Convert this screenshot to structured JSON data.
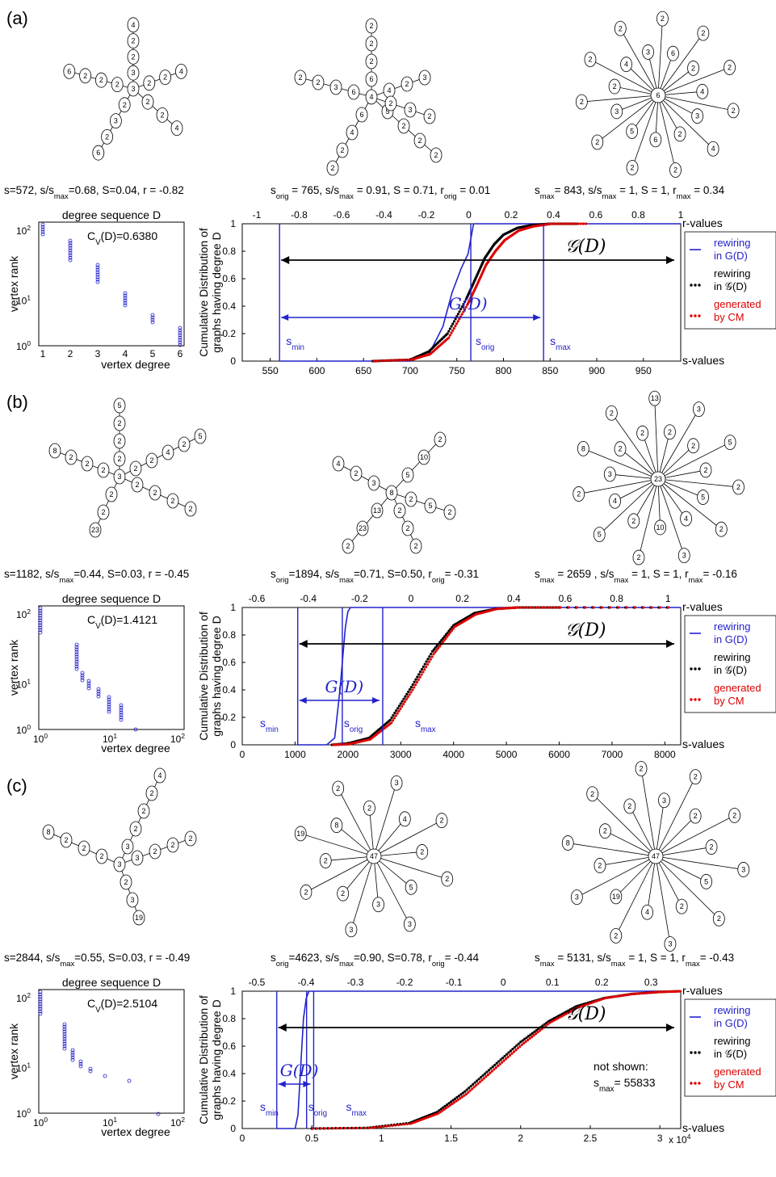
{
  "figure": {
    "panels": [
      {
        "label": "(a)",
        "captions": [
          {
            "base": "s=572, s/s",
            "sub": "max",
            "rest": "=0.68, S=0.04, r = -0.82"
          },
          {
            "base": "s",
            "sub": "orig",
            "rest": " = 765, s/s",
            "sub2": "max",
            "rest2": " = 0.91, S = 0.71, r",
            "sub3": "orig",
            "rest3": " = 0.01"
          },
          {
            "base": "s",
            "sub": "max",
            "rest": "= 843, s/s",
            "sub2": "max",
            "rest2": " = 1, S = 1, r",
            "sub3": "max",
            "rest3": " = 0.34"
          }
        ],
        "degree_plot": {
          "title": "degree sequence D",
          "cv": "C",
          "cv_sub": "V",
          "cv_rest": "(D)=0.6380",
          "ylabel": "vertex rank",
          "xlabel": "vertex degree",
          "x_ticks": [
            "1",
            "2",
            "3",
            "4",
            "5",
            "6"
          ],
          "y_ticks": [
            "10",
            "10",
            "10"
          ],
          "y_exp": [
            "0",
            "1",
            "2"
          ]
        },
        "cdf_plot": {
          "ylabel1": "Cumulative Distribution of",
          "ylabel2": "graphs having degree D",
          "x_ticks": [
            "550",
            "600",
            "650",
            "700",
            "750",
            "800",
            "850",
            "900",
            "950"
          ],
          "top_ticks": [
            "-1",
            "-0.8",
            "-0.6",
            "-0.4",
            "-0.2",
            "0",
            "0.2",
            "0.4",
            "0.6",
            "0.8",
            "1"
          ],
          "y_ticks": [
            "0",
            "0.2",
            "0.4",
            "0.6",
            "0.8",
            "1"
          ],
          "x_label": "s-values",
          "top_label": "r-values",
          "markers": {
            "s_min": "s",
            "s_min_sub": "min",
            "s_orig": "s",
            "s_orig_sub": "orig",
            "s_max": "s",
            "s_max_sub": "max"
          },
          "big_G": "G(D)",
          "script_G": "𝒢(D)",
          "legend": [
            {
              "line1": "rewiring",
              "line2": "in G(D)",
              "color": "#2222cc"
            },
            {
              "line1": "rewiring",
              "line2": "in 𝒢(D)",
              "color": "#000000"
            },
            {
              "line1": "generated",
              "line2": "by CM",
              "color": "#dd0000"
            }
          ]
        }
      },
      {
        "label": "(b)",
        "captions": [
          {
            "base": "s=1182, s/s",
            "sub": "max",
            "rest": "=0.44, S=0.03, r = -0.45"
          },
          {
            "base": "s",
            "sub": "orig",
            "rest": "=1894, s/s",
            "sub2": "max",
            "rest2": "=0.71, S=0.50, r",
            "sub3": "orig",
            "rest3": "= -0.31"
          },
          {
            "base": "s",
            "sub": "max",
            "rest": " = 2659 , s/s",
            "sub2": "max",
            "rest2": " = 1, S = 1, r",
            "sub3": "max",
            "rest3": "= -0.16"
          }
        ],
        "degree_plot": {
          "title": "degree sequence D",
          "cv": "C",
          "cv_sub": "V",
          "cv_rest": "(D)=1.4121",
          "ylabel": "vertex rank",
          "xlabel": "vertex degree",
          "x_ticks": [
            "10",
            "10",
            "10"
          ],
          "x_exp": [
            "0",
            "1",
            "2"
          ],
          "y_ticks": [
            "10",
            "10",
            "10"
          ],
          "y_exp": [
            "0",
            "1",
            "2"
          ]
        },
        "cdf_plot": {
          "ylabel1": "Cumulative Distribution of",
          "ylabel2": "graphs having degree D",
          "x_ticks": [
            "0",
            "1000",
            "2000",
            "3000",
            "4000",
            "5000",
            "6000",
            "7000",
            "8000"
          ],
          "top_ticks": [
            "-0.6",
            "-0.4",
            "-0.2",
            "0",
            "0.2",
            "0.4",
            "0.6",
            "0.8",
            "1"
          ],
          "y_ticks": [
            "0",
            "0.2",
            "0.4",
            "0.6",
            "0.8",
            "1"
          ],
          "x_label": "s-values",
          "top_label": "r-values",
          "big_G": "G(D)",
          "script_G": "𝒢(D)"
        }
      },
      {
        "label": "(c)",
        "captions": [
          {
            "base": "s=2844, s/s",
            "sub": "max",
            "rest": "=0.55, S=0.03, r = -0.49"
          },
          {
            "base": "s",
            "sub": "orig",
            "rest": "=4623, s/s",
            "sub2": "max",
            "rest2": "=0.90, S=0.78, r",
            "sub3": "orig",
            "rest3": "= -0.44"
          },
          {
            "base": "s",
            "sub": "max",
            "rest": " = 5131, s/s",
            "sub2": "max",
            "rest2": " = 1, S = 1, r",
            "sub3": "max",
            "rest3": "= -0.43"
          }
        ],
        "degree_plot": {
          "title": "degree sequence D",
          "cv": "C",
          "cv_sub": "V",
          "cv_rest": "(D)=2.5104",
          "ylabel": "vertex rank",
          "xlabel": "vertex degree",
          "x_ticks": [
            "10",
            "10",
            "10"
          ],
          "x_exp": [
            "0",
            "1",
            "2"
          ],
          "y_ticks": [
            "10",
            "10",
            "10"
          ],
          "y_exp": [
            "0",
            "1",
            "2"
          ]
        },
        "cdf_plot": {
          "ylabel1": "Cumulative Distribution of",
          "ylabel2": "graphs having degree D",
          "x_ticks": [
            "0",
            "0.5",
            "1",
            "1.5",
            "2",
            "2.5",
            "3"
          ],
          "x_mult": "x 10",
          "x_mult_exp": "4",
          "top_ticks": [
            "-0.5",
            "-0.4",
            "-0.3",
            "-0.2",
            "-0.1",
            "0",
            "0.1",
            "0.2",
            "0.3"
          ],
          "y_ticks": [
            "0",
            "0.2",
            "0.4",
            "0.6",
            "0.8",
            "1"
          ],
          "x_label": "s-values",
          "top_label": "r-values",
          "big_G": "G(D)",
          "script_G": "𝒢(D)",
          "not_shown": "not shown:",
          "not_shown_val": "= 55833"
        }
      }
    ]
  },
  "chart_data": [
    {
      "type": "line",
      "title": "",
      "xlabel": "s-values",
      "ylabel": "Cumulative Distribution of graphs having degree D",
      "xlim": [
        520,
        990
      ],
      "ylim": [
        0,
        1
      ],
      "s_min": 560,
      "s_orig": 765,
      "s_max": 843,
      "series": [
        {
          "name": "rewiring in G(D)",
          "color": "#2222cc",
          "x": [
            560,
            700,
            720,
            735,
            745,
            755,
            762,
            768,
            780,
            800,
            843
          ],
          "values": [
            0,
            0,
            0.05,
            0.25,
            0.5,
            0.68,
            0.78,
            1,
            1,
            1,
            1
          ]
        },
        {
          "name": "rewiring in 𝒢(D)",
          "color": "#000000",
          "x": [
            660,
            700,
            720,
            740,
            760,
            770,
            780,
            790,
            800,
            815,
            830,
            850,
            880
          ],
          "values": [
            0,
            0.01,
            0.07,
            0.2,
            0.45,
            0.6,
            0.75,
            0.85,
            0.92,
            0.97,
            0.99,
            1,
            1
          ]
        },
        {
          "name": "generated by CM",
          "color": "#dd0000",
          "x": [
            660,
            700,
            720,
            740,
            760,
            770,
            780,
            790,
            800,
            815,
            830,
            850,
            890
          ],
          "values": [
            0,
            0.01,
            0.05,
            0.17,
            0.41,
            0.55,
            0.7,
            0.8,
            0.88,
            0.95,
            0.98,
            1,
            1
          ]
        }
      ]
    },
    {
      "type": "line",
      "title": "",
      "xlabel": "s-values",
      "ylabel": "Cumulative Distribution of graphs having degree D",
      "xlim": [
        0,
        8300
      ],
      "ylim": [
        0,
        1
      ],
      "s_min": 1050,
      "s_orig": 1894,
      "s_max": 2659,
      "series": [
        {
          "name": "rewiring in G(D)",
          "color": "#2222cc",
          "x": [
            1050,
            1600,
            1750,
            1850,
            1950,
            2000,
            2050,
            2659
          ],
          "values": [
            0,
            0,
            0.05,
            0.4,
            0.85,
            0.97,
            1,
            1
          ]
        },
        {
          "name": "rewiring in 𝒢(D)",
          "color": "#000000",
          "x": [
            1700,
            2000,
            2400,
            2800,
            3200,
            3600,
            4000,
            4400,
            4800,
            5200,
            6000,
            8200
          ],
          "values": [
            0,
            0.01,
            0.05,
            0.18,
            0.42,
            0.68,
            0.87,
            0.96,
            0.99,
            1,
            1,
            1
          ]
        },
        {
          "name": "generated by CM",
          "color": "#dd0000",
          "x": [
            1700,
            2000,
            2400,
            2800,
            3200,
            3600,
            4000,
            4400,
            4800,
            5200,
            6000,
            8200
          ],
          "values": [
            0,
            0.005,
            0.04,
            0.16,
            0.4,
            0.66,
            0.86,
            0.95,
            0.99,
            1,
            1,
            1
          ]
        }
      ]
    },
    {
      "type": "line",
      "title": "",
      "xlabel": "s-values",
      "ylabel": "Cumulative Distribution of graphs having degree D",
      "xlim": [
        0,
        31500
      ],
      "ylim": [
        0,
        1
      ],
      "s_min": 2480,
      "s_orig": 4623,
      "s_max": 5131,
      "series": [
        {
          "name": "rewiring in G(D)",
          "color": "#2222cc",
          "x": [
            2480,
            3800,
            4000,
            4200,
            4400,
            4600,
            4800,
            5131
          ],
          "values": [
            0,
            0,
            0.1,
            0.45,
            0.8,
            0.95,
            1,
            1
          ]
        },
        {
          "name": "rewiring in 𝒢(D)",
          "color": "#000000",
          "x": [
            5000,
            9000,
            12000,
            14000,
            16000,
            18000,
            20000,
            22000,
            24000,
            26000,
            28000,
            30000,
            31500
          ],
          "values": [
            0,
            0.005,
            0.04,
            0.12,
            0.27,
            0.45,
            0.63,
            0.78,
            0.89,
            0.95,
            0.98,
            0.995,
            1
          ]
        },
        {
          "name": "generated by CM",
          "color": "#dd0000",
          "x": [
            5000,
            9000,
            12000,
            14000,
            16000,
            18000,
            20000,
            22000,
            24000,
            26000,
            28000,
            30000,
            31500
          ],
          "values": [
            0,
            0.004,
            0.035,
            0.11,
            0.25,
            0.43,
            0.61,
            0.77,
            0.88,
            0.95,
            0.98,
            0.995,
            1
          ]
        }
      ]
    }
  ]
}
